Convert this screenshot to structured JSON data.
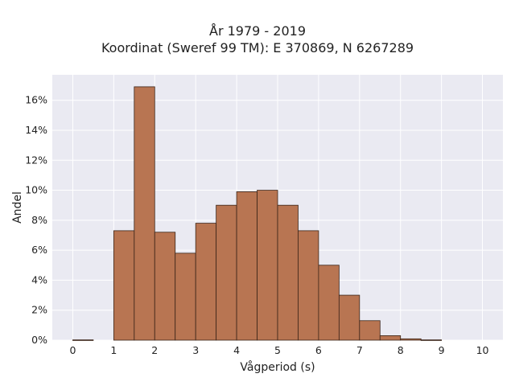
{
  "chart_data": {
    "type": "bar",
    "title": "År 1979 - 2019",
    "subtitle": "Koordinat (Sweref 99 TM): E 370869, N 6267289",
    "xlabel": "Vågperiod (s)",
    "ylabel": "Andel",
    "xlim": [
      -0.5,
      10.5
    ],
    "ylim": [
      0,
      0.177
    ],
    "grid": true,
    "bin_width": 0.5,
    "bin_starts": [
      0,
      0.5,
      1,
      1.5,
      2,
      2.5,
      3,
      3.5,
      4,
      4.5,
      5,
      5.5,
      6,
      6.5,
      7,
      7.5,
      8,
      8.5,
      9,
      9.5
    ],
    "values": [
      0.0002,
      0,
      0.073,
      0.169,
      0.072,
      0.058,
      0.078,
      0.09,
      0.099,
      0.1,
      0.09,
      0.073,
      0.05,
      0.03,
      0.013,
      0.003,
      0.0009,
      0.0002,
      0,
      0
    ],
    "x_ticks": [
      0,
      1,
      2,
      3,
      4,
      5,
      6,
      7,
      8,
      9,
      10
    ],
    "y_ticks": [
      0,
      0.02,
      0.04,
      0.06,
      0.08,
      0.1,
      0.12,
      0.14,
      0.16
    ],
    "y_tick_labels": [
      "0%",
      "2%",
      "4%",
      "6%",
      "8%",
      "10%",
      "12%",
      "14%",
      "16%"
    ],
    "bar_color": "#b87552",
    "bar_edge_color": "#3a2418",
    "plot_background": "#eaeaf2",
    "grid_color": "#ffffff"
  }
}
